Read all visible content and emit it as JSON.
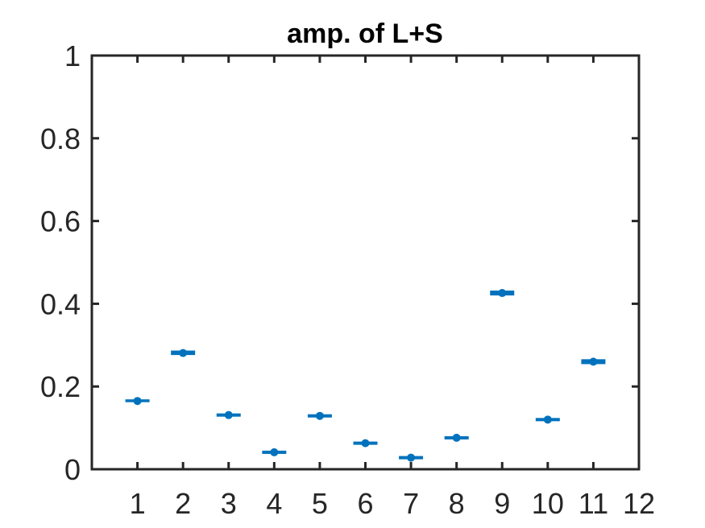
{
  "chart_data": {
    "type": "scatter",
    "title": "amp. of L+S",
    "xlabel": "",
    "ylabel": "",
    "xlim": [
      0,
      12
    ],
    "ylim": [
      0,
      1
    ],
    "xticks": [
      1,
      2,
      3,
      4,
      5,
      6,
      7,
      8,
      9,
      10,
      11,
      12
    ],
    "yticks": [
      0,
      0.2,
      0.4,
      0.6,
      0.8,
      1
    ],
    "ytick_labels": [
      "0",
      "0.2",
      "0.4",
      "0.6",
      "0.8",
      "1"
    ],
    "grid": false,
    "series": [
      {
        "x": [
          1,
          2,
          3,
          4,
          5,
          6,
          7,
          8,
          9,
          10,
          11
        ],
        "y": [
          0.165,
          0.281,
          0.131,
          0.041,
          0.129,
          0.063,
          0.028,
          0.076,
          0.426,
          0.12,
          0.26
        ],
        "error_low": [
          0.165,
          0.279,
          0.13,
          0.04,
          0.128,
          0.062,
          0.027,
          0.075,
          0.423,
          0.119,
          0.257
        ],
        "error_high": [
          0.166,
          0.284,
          0.132,
          0.042,
          0.13,
          0.064,
          0.029,
          0.077,
          0.429,
          0.121,
          0.263
        ],
        "color": "#0072BD"
      }
    ]
  }
}
